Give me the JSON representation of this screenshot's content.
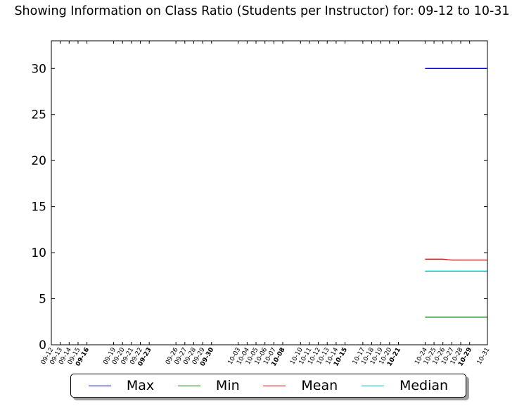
{
  "chart_data": {
    "type": "line",
    "title": "Showing Information on Class Ratio (Students per Instructor) for: 09-12 to 10-31",
    "xlabel": "",
    "ylabel": "",
    "ylim": [
      0,
      33
    ],
    "yticks": [
      "0",
      "5",
      "10",
      "15",
      "20",
      "25",
      "30"
    ],
    "x_start": "09-12",
    "xticks": [
      "09-12",
      "09-13",
      "09-14",
      "09-15",
      "09-16",
      "09-19",
      "09-20",
      "09-21",
      "09-22",
      "09-23",
      "09-26",
      "09-27",
      "09-28",
      "09-29",
      "09-30",
      "10-03",
      "10-04",
      "10-05",
      "10-06",
      "10-07",
      "10-08",
      "10-10",
      "10-11",
      "10-12",
      "10-13",
      "10-14",
      "10-15",
      "10-17",
      "10-18",
      "10-19",
      "10-20",
      "10-21",
      "10-24",
      "10-25",
      "10-26",
      "10-27",
      "10-28",
      "10-29",
      "10-31"
    ],
    "bold_ticks": [
      "09-16",
      "09-23",
      "09-30",
      "10-08",
      "10-15",
      "10-21",
      "10-29"
    ],
    "x": [
      "10-24",
      "10-25",
      "10-26",
      "10-27",
      "10-28",
      "10-29",
      "10-31"
    ],
    "series": [
      {
        "name": "Max",
        "color": "#0000ff",
        "values": [
          30,
          30,
          30,
          30,
          30,
          30,
          30
        ]
      },
      {
        "name": "Min",
        "color": "#008000",
        "values": [
          3,
          3,
          3,
          3,
          3,
          3,
          3
        ]
      },
      {
        "name": "Mean",
        "color": "#ff0000",
        "values": [
          9.3,
          9.3,
          9.3,
          9.2,
          9.2,
          9.2,
          9.2
        ]
      },
      {
        "name": "Median",
        "color": "#00bfbf",
        "values": [
          8,
          8,
          8,
          8,
          8,
          8,
          8
        ]
      }
    ],
    "grid": false,
    "legend": "bottom"
  }
}
